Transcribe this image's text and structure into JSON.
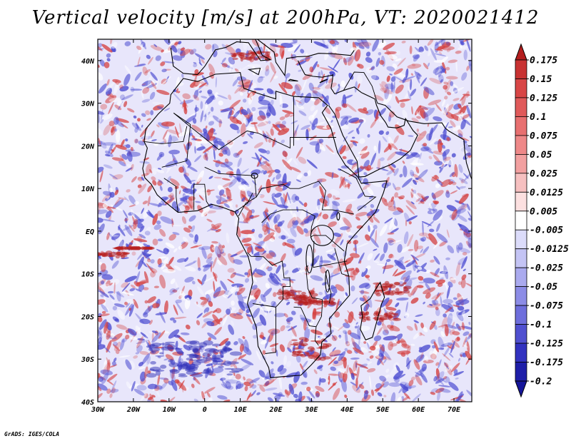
{
  "title": "Vertical velocity [m/s] at 200hPa, VT: 2020021412",
  "credit": "GrADS: IGES/COLA",
  "map": {
    "lon_labels": [
      "30W",
      "20W",
      "10W",
      "0",
      "10E",
      "20E",
      "30E",
      "40E",
      "50E",
      "60E",
      "70E"
    ],
    "lat_labels": [
      "40N",
      "30N",
      "20N",
      "10N",
      "EQ",
      "10S",
      "20S",
      "30S",
      "40S"
    ],
    "lon_range": [
      -30,
      75
    ],
    "lat_range": [
      -40,
      45
    ],
    "field_description": "noisy red/blue vertical velocity field over Africa and Indian Ocean"
  },
  "colorbar": {
    "labels": [
      "0.175",
      "0.15",
      "0.125",
      "0.1",
      "0.075",
      "0.05",
      "0.025",
      "0.0125",
      "0.005",
      "-0.005",
      "-0.0125",
      "-0.025",
      "-0.05",
      "-0.075",
      "-0.1",
      "-0.125",
      "-0.175",
      "-0.2"
    ],
    "colors": [
      "#b41e1e",
      "#c83232",
      "#d84646",
      "#e05a5a",
      "#e87070",
      "#ee8888",
      "#f2a0a0",
      "#f6c0c0",
      "#fce0e0",
      "#ffffff",
      "#dcdcfa",
      "#c4c4f4",
      "#aaaaee",
      "#8c8ce6",
      "#6e6edc",
      "#5050d0",
      "#3232c0",
      "#1e1ea8",
      "#16169a"
    ]
  },
  "colors": {
    "positive": "#d44040",
    "negative": "#4a4ad0"
  }
}
